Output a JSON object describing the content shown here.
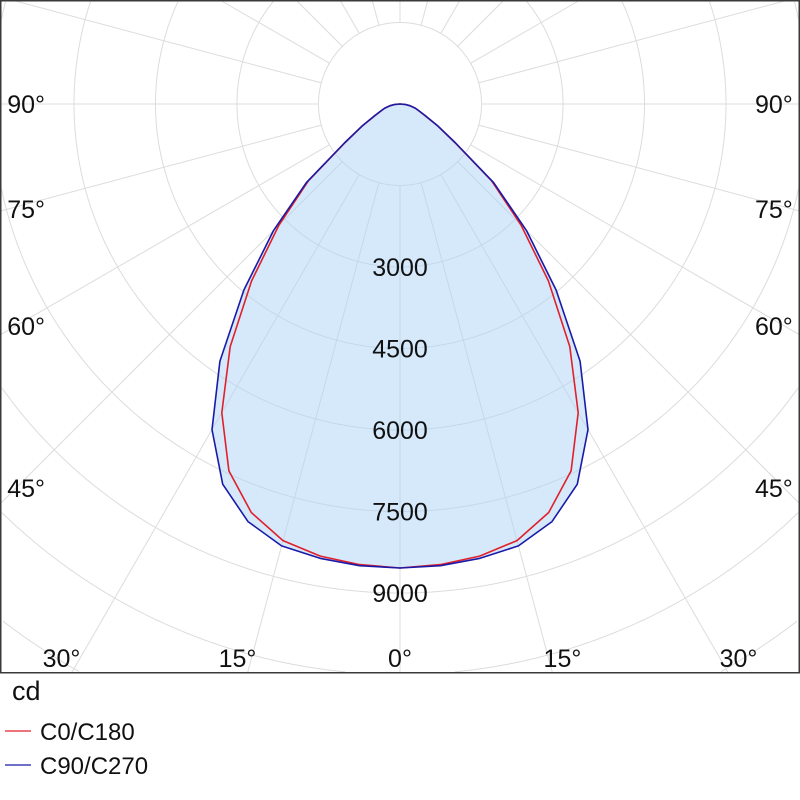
{
  "chart_data": {
    "type": "polar",
    "title": "",
    "unit_label": "cd",
    "radial_axis": {
      "range": [
        0,
        9000
      ],
      "grid_step": 1500,
      "tick_labels": [
        "3000",
        "4500",
        "6000",
        "7500",
        "9000"
      ],
      "tick_values": [
        3000,
        4500,
        6000,
        7500,
        9000
      ]
    },
    "angular_axis": {
      "grid_step_deg": 15,
      "left_labels": [
        {
          "angle": 90,
          "text": "90°"
        },
        {
          "angle": 75,
          "text": "75°"
        },
        {
          "angle": 60,
          "text": "60°"
        },
        {
          "angle": 45,
          "text": "45°"
        },
        {
          "angle": 30,
          "text": "30°"
        },
        {
          "angle": 15,
          "text": "15°"
        }
      ],
      "center_label": {
        "angle": 0,
        "text": "0°"
      },
      "right_labels": [
        {
          "angle": 15,
          "text": "15°"
        },
        {
          "angle": 30,
          "text": "30°"
        },
        {
          "angle": 45,
          "text": "45°"
        },
        {
          "angle": 60,
          "text": "60°"
        },
        {
          "angle": 75,
          "text": "75°"
        },
        {
          "angle": 90,
          "text": "90°"
        }
      ]
    },
    "angles_deg": [
      0,
      5,
      10,
      15,
      20,
      25,
      30,
      35,
      40,
      45,
      50,
      55,
      60,
      65,
      70,
      75,
      80,
      85,
      90
    ],
    "series": [
      {
        "name": "C0/C180",
        "color": "#e0202a",
        "values": [
          8540,
          8510,
          8450,
          8320,
          8000,
          7450,
          6560,
          5450,
          4250,
          3150,
          2200,
          1220,
          790,
          510,
          370,
          285,
          185,
          92,
          0
        ]
      },
      {
        "name": "C90/C270",
        "color": "#1a1aa8",
        "values": [
          8540,
          8530,
          8490,
          8420,
          8180,
          7720,
          6920,
          5780,
          4470,
          3290,
          2250,
          1250,
          800,
          520,
          380,
          290,
          190,
          95,
          0
        ]
      }
    ],
    "fill_color": "#d5e9fb",
    "grid": true,
    "legend_position": "bottom-left"
  }
}
